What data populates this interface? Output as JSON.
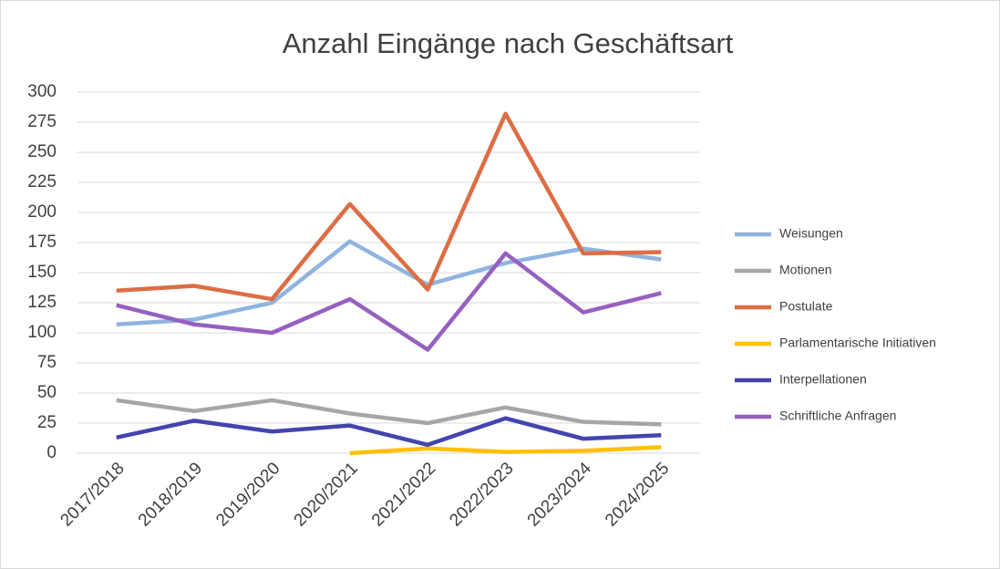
{
  "chart_data": {
    "type": "line",
    "title": "Anzahl Eingänge nach Geschäftsart",
    "categories": [
      "2017/2018",
      "2018/2019",
      "2019/2020",
      "2020/2021",
      "2021/2022",
      "2022/2023",
      "2023/2024",
      "2024/2025"
    ],
    "series": [
      {
        "name": "Weisungen",
        "color": "#8fb4df",
        "values": [
          107,
          111,
          125,
          176,
          140,
          158,
          170,
          161
        ]
      },
      {
        "name": "Motionen",
        "color": "#a6a6a6",
        "values": [
          44,
          35,
          44,
          33,
          25,
          38,
          26,
          24
        ]
      },
      {
        "name": "Postulate",
        "color": "#dd6d44",
        "values": [
          135,
          139,
          128,
          207,
          136,
          282,
          166,
          167
        ]
      },
      {
        "name": "Parlamentarische Initiativen",
        "color": "#ffc000",
        "values": [
          null,
          null,
          null,
          0,
          4,
          1,
          2,
          5
        ]
      },
      {
        "name": "Interpellationen",
        "color": "#4444b0",
        "values": [
          13,
          27,
          18,
          23,
          7,
          29,
          12,
          15
        ]
      },
      {
        "name": "Schriftliche Anfragen",
        "color": "#9660c0",
        "values": [
          123,
          107,
          100,
          128,
          86,
          166,
          117,
          133
        ]
      }
    ],
    "ylim": [
      0,
      300
    ],
    "yticks": [
      0,
      25,
      50,
      75,
      100,
      125,
      150,
      175,
      200,
      225,
      250,
      275,
      300
    ],
    "grid": true,
    "legend": "right"
  }
}
